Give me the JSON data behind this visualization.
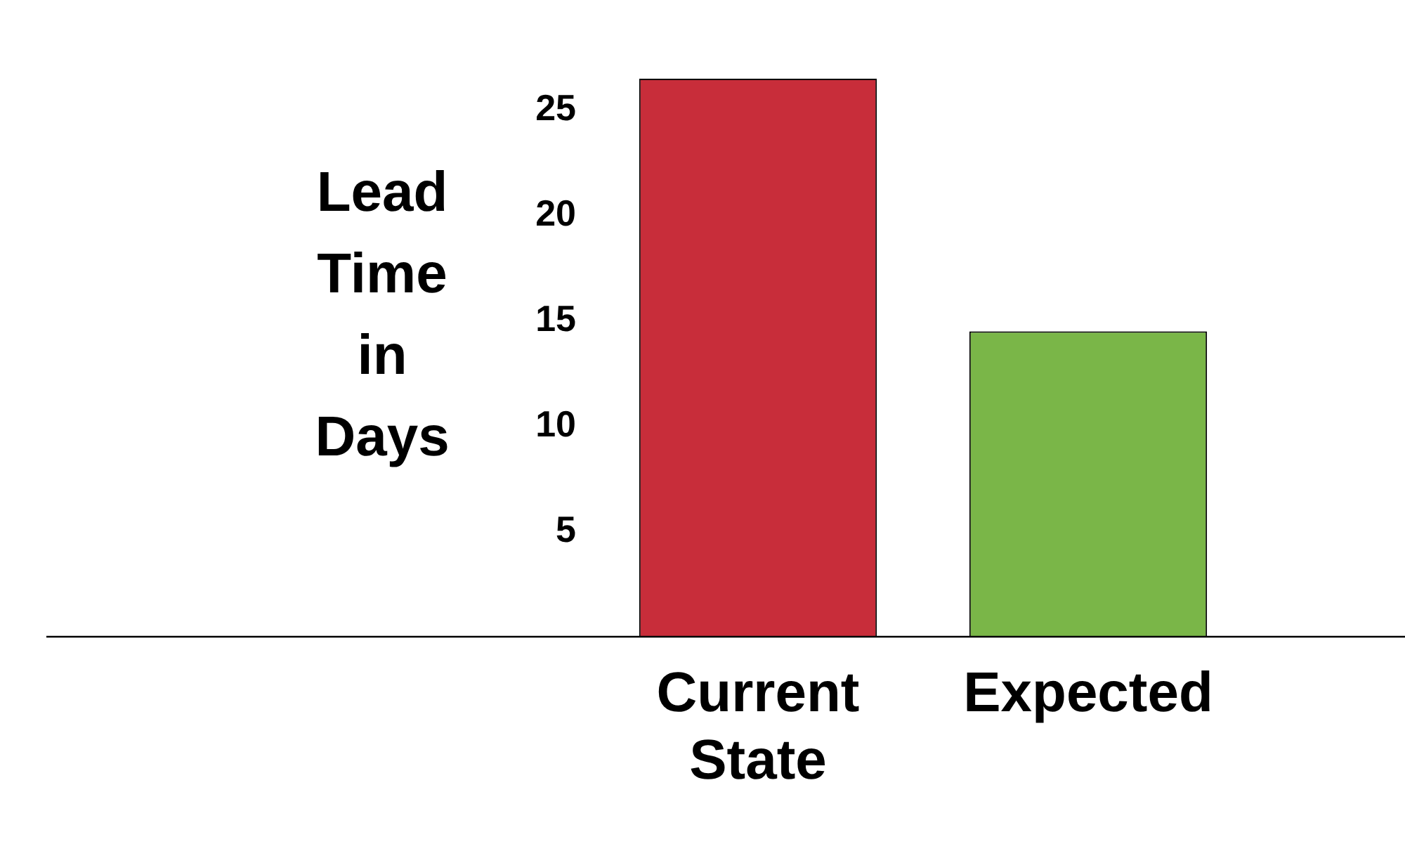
{
  "chart_data": {
    "type": "bar",
    "ylabel": "Lead Time in Days",
    "categories": [
      "Current State",
      "Expected"
    ],
    "values": [
      26.5,
      14.5
    ],
    "colors": [
      "#c82d3a",
      "#7ab648"
    ],
    "ylim": [
      0,
      26.5
    ],
    "yticks": [
      5,
      10,
      15,
      20,
      25
    ],
    "grid": false,
    "legend": false
  }
}
